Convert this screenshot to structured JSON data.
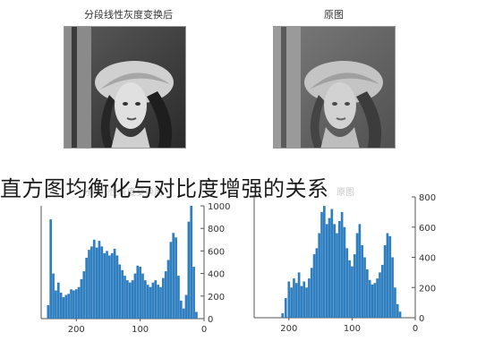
{
  "left_panel": {
    "caption": "分段线性灰度变换后"
  },
  "right_panel": {
    "caption": "原图"
  },
  "headline": "直方图均衡化与对比度增强的关系",
  "ghost_text": {
    "left": "分段线性灰度变换后",
    "right": "原图"
  },
  "chart_data": [
    {
      "type": "bar",
      "title": "",
      "xlabel": "",
      "ylabel": "",
      "x_axis": {
        "reversed": true,
        "range": [
          255,
          0
        ],
        "ticks": [
          "200",
          "100",
          "0"
        ]
      },
      "y_axis": {
        "side": "right",
        "range": [
          0,
          1000
        ],
        "ticks": [
          "0",
          "200",
          "400",
          "600",
          "800",
          "1000"
        ]
      },
      "color": "#2f7fc0",
      "grid": false,
      "values_note_visible": false,
      "bins": [
        [
          244,
          120
        ],
        [
          240,
          880
        ],
        [
          236,
          400
        ],
        [
          232,
          250
        ],
        [
          228,
          320
        ],
        [
          224,
          230
        ],
        [
          220,
          190
        ],
        [
          216,
          210
        ],
        [
          212,
          220
        ],
        [
          208,
          260
        ],
        [
          204,
          250
        ],
        [
          200,
          260
        ],
        [
          196,
          280
        ],
        [
          192,
          350
        ],
        [
          188,
          420
        ],
        [
          184,
          540
        ],
        [
          180,
          610
        ],
        [
          176,
          640
        ],
        [
          172,
          700
        ],
        [
          168,
          630
        ],
        [
          164,
          690
        ],
        [
          160,
          640
        ],
        [
          156,
          580
        ],
        [
          152,
          600
        ],
        [
          148,
          560
        ],
        [
          144,
          580
        ],
        [
          140,
          620
        ],
        [
          136,
          560
        ],
        [
          132,
          480
        ],
        [
          128,
          430
        ],
        [
          124,
          380
        ],
        [
          120,
          340
        ],
        [
          116,
          320
        ],
        [
          112,
          340
        ],
        [
          108,
          400
        ],
        [
          104,
          470
        ],
        [
          100,
          460
        ],
        [
          96,
          400
        ],
        [
          92,
          340
        ],
        [
          88,
          300
        ],
        [
          84,
          280
        ],
        [
          80,
          320
        ],
        [
          76,
          340
        ],
        [
          72,
          300
        ],
        [
          68,
          280
        ],
        [
          64,
          360
        ],
        [
          60,
          420
        ],
        [
          56,
          520
        ],
        [
          52,
          680
        ],
        [
          48,
          760
        ],
        [
          44,
          720
        ],
        [
          40,
          380
        ],
        [
          36,
          160
        ],
        [
          32,
          90
        ],
        [
          28,
          210
        ],
        [
          24,
          860
        ],
        [
          20,
          1030
        ],
        [
          16,
          460
        ],
        [
          12,
          60
        ]
      ]
    },
    {
      "type": "bar",
      "title": "",
      "xlabel": "",
      "ylabel": "",
      "x_axis": {
        "reversed": true,
        "range": [
          255,
          0
        ],
        "ticks": [
          "200",
          "100",
          "0"
        ]
      },
      "y_axis": {
        "side": "right",
        "range": [
          0,
          800
        ],
        "ticks": [
          "0",
          "200",
          "400",
          "600",
          "800"
        ]
      },
      "color": "#2f7fc0",
      "grid": false,
      "bins": [
        [
          210,
          30
        ],
        [
          205,
          130
        ],
        [
          200,
          240
        ],
        [
          196,
          200
        ],
        [
          192,
          260
        ],
        [
          188,
          230
        ],
        [
          184,
          300
        ],
        [
          180,
          210
        ],
        [
          176,
          240
        ],
        [
          172,
          200
        ],
        [
          168,
          260
        ],
        [
          164,
          330
        ],
        [
          160,
          420
        ],
        [
          156,
          460
        ],
        [
          152,
          560
        ],
        [
          148,
          700
        ],
        [
          144,
          740
        ],
        [
          140,
          620
        ],
        [
          136,
          660
        ],
        [
          132,
          720
        ],
        [
          128,
          620
        ],
        [
          124,
          560
        ],
        [
          120,
          640
        ],
        [
          116,
          700
        ],
        [
          112,
          600
        ],
        [
          108,
          460
        ],
        [
          104,
          380
        ],
        [
          100,
          340
        ],
        [
          96,
          420
        ],
        [
          92,
          560
        ],
        [
          88,
          620
        ],
        [
          84,
          480
        ],
        [
          80,
          400
        ],
        [
          76,
          320
        ],
        [
          72,
          250
        ],
        [
          68,
          220
        ],
        [
          64,
          230
        ],
        [
          60,
          260
        ],
        [
          56,
          300
        ],
        [
          52,
          350
        ],
        [
          48,
          480
        ],
        [
          44,
          560
        ],
        [
          40,
          540
        ],
        [
          36,
          400
        ],
        [
          32,
          200
        ],
        [
          28,
          90
        ],
        [
          24,
          40
        ]
      ]
    }
  ]
}
